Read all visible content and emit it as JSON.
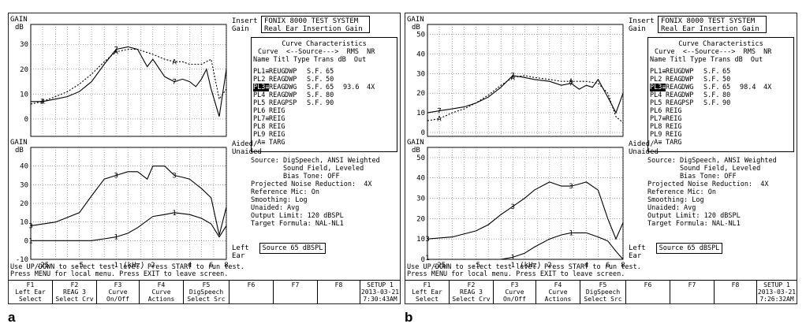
{
  "panels": [
    {
      "caption": "a",
      "header": {
        "title": "FONIX 8000 TEST SYSTEM",
        "subtitle": "Real Ear Insertion Gain"
      },
      "top_graph": {
        "y_label_top": "GAIN",
        "y_unit": "dB",
        "mode_label_1": "Insert",
        "mode_label_2": "Gain",
        "y_ticks": [
          "30",
          "20",
          "10",
          "0"
        ],
        "y_range": [
          -7,
          38
        ]
      },
      "bottom_graph": {
        "y_label_top": "GAIN",
        "y_unit": "dB",
        "mode_label_1": "Aided/",
        "mode_label_2": "Unaided",
        "ear_label_1": "Left",
        "ear_label_2": "Ear",
        "y_ticks": [
          "40",
          "30",
          "20",
          "10",
          "0",
          "-10"
        ],
        "y_range": [
          -10,
          50
        ]
      },
      "x_ticks": [
        ".25",
        ".5",
        "1",
        "(kHz)",
        "2",
        "4",
        "6",
        "8"
      ],
      "curve_characteristics": {
        "title": "Curve Characteristics",
        "header1": "Curve  <--Source--->  RMS  NR",
        "header2": "Name Titl Type Trans dB  Out",
        "rows": [
          {
            "name": "PL1≡",
            "titl": "REUG",
            "type": "DWP",
            "trans": "S.F.",
            "db": "65",
            "rms": "",
            "nr": "",
            "selected": false
          },
          {
            "name": "PL2",
            "titl": "REAG",
            "type": "DWP",
            "trans": "S.F.",
            "db": "50",
            "rms": "",
            "nr": "",
            "selected": false
          },
          {
            "name": "PL3≡",
            "titl": "REAG",
            "type": "DWG",
            "trans": "S.F.",
            "db": "65",
            "rms": "93.6",
            "nr": "4X",
            "selected": true
          },
          {
            "name": "PL4",
            "titl": "REAG",
            "type": "DWP",
            "trans": "S.F.",
            "db": "80",
            "rms": "",
            "nr": "",
            "selected": false
          },
          {
            "name": "PL5",
            "titl": "REAG",
            "type": "PSP",
            "trans": "S.F.",
            "db": "90",
            "rms": "",
            "nr": "",
            "selected": false
          },
          {
            "name": "PL6",
            "titl": "REIG",
            "type": "",
            "trans": "",
            "db": "",
            "rms": "",
            "nr": "",
            "selected": false
          },
          {
            "name": "PL7≡",
            "titl": "REIG",
            "type": "",
            "trans": "",
            "db": "",
            "rms": "",
            "nr": "",
            "selected": false
          },
          {
            "name": "PL8",
            "titl": "REIG",
            "type": "",
            "trans": "",
            "db": "",
            "rms": "",
            "nr": "",
            "selected": false
          },
          {
            "name": "PL9",
            "titl": "REIG",
            "type": "",
            "trans": "",
            "db": "",
            "rms": "",
            "nr": "",
            "selected": false
          },
          {
            "name": " A≡",
            "titl": "TARG",
            "type": "",
            "trans": "",
            "db": "",
            "rms": "",
            "nr": "",
            "selected": false
          }
        ]
      },
      "info": [
        "Source: DigSpeech, ANSI Weighted",
        "        Sound Field, Leveled",
        "        Bias Tone: OFF",
        "Projected Noise Reduction:  4X",
        "Reference Mic: On",
        "Smoothing: Log",
        "Unaided: Avg",
        "Output Limit: 120 dBSPL",
        "Target Formula: NAL-NL1"
      ],
      "source_box": "Source  65 dBSPL",
      "instructions": [
        "Use UP/DOWN to select test level. Press START to run test.",
        "Press MENU for local menu. Press EXIT to leave screen."
      ],
      "fkeys": [
        {
          "top": "F1",
          "mid": "Left Ear",
          "bot": "Select"
        },
        {
          "top": "F2",
          "mid": "REAG 3",
          "bot": "Select Crv"
        },
        {
          "top": "F3",
          "mid": "Curve",
          "bot": "On/Off"
        },
        {
          "top": "F4",
          "mid": "Curve",
          "bot": "Actions"
        },
        {
          "top": "F5",
          "mid": "DigSpeech",
          "bot": "Select Src"
        },
        {
          "top": "F6",
          "mid": "",
          "bot": ""
        },
        {
          "top": "F7",
          "mid": "",
          "bot": ""
        },
        {
          "top": "F8",
          "mid": "",
          "bot": ""
        },
        {
          "top": "SETUP 1",
          "mid": "2013-03-21",
          "bot": "7:30:43AM"
        }
      ],
      "top_curves": {
        "insertion_gain": {
          "x": [
            0.2,
            0.25,
            0.32,
            0.4,
            0.5,
            0.63,
            0.8,
            1.0,
            1.25,
            1.5,
            1.8,
            2.0,
            2.5,
            3.0,
            3.5,
            4.0,
            4.5,
            5.0,
            5.5,
            6.0,
            7.0,
            8.0
          ],
          "y": [
            7,
            7,
            8,
            9,
            11,
            15,
            22,
            28,
            29,
            28,
            21,
            24,
            17,
            15,
            16,
            15,
            13,
            16,
            20,
            12,
            1,
            20
          ],
          "marker": "7"
        },
        "target": {
          "x": [
            0.2,
            0.25,
            0.32,
            0.4,
            0.5,
            0.63,
            0.8,
            1.0,
            1.25,
            1.5,
            2.0,
            2.5,
            3.0,
            3.5,
            4.0,
            5.0,
            6.0,
            7.0,
            8.0
          ],
          "y": [
            6,
            7,
            9,
            11,
            14,
            18,
            23,
            27,
            28,
            28,
            26,
            24,
            23,
            23,
            22,
            22,
            24,
            8,
            12
          ],
          "marker": "A"
        }
      },
      "bottom_curves": {
        "aided": {
          "x": [
            0.2,
            0.32,
            0.5,
            0.63,
            0.8,
            1.0,
            1.25,
            1.5,
            1.8,
            2.0,
            2.5,
            3.0,
            3.5,
            4.0,
            5.0,
            6.0,
            7.0,
            8.0
          ],
          "y": [
            8,
            10,
            15,
            24,
            33,
            35,
            37,
            37,
            33,
            40,
            40,
            35,
            34,
            33,
            28,
            23,
            3,
            18
          ],
          "marker": "3"
        },
        "unaided": {
          "x": [
            0.2,
            0.32,
            0.5,
            0.63,
            0.8,
            1.0,
            1.25,
            1.5,
            2.0,
            2.5,
            3.0,
            4.0,
            5.0,
            6.0,
            7.0,
            8.0
          ],
          "y": [
            0,
            0,
            0,
            0,
            1,
            2,
            4,
            7,
            13,
            14,
            15,
            14,
            12,
            9,
            2,
            8
          ],
          "marker": "1"
        }
      }
    },
    {
      "caption": "b",
      "header": {
        "title": "FONIX 8000 TEST SYSTEM",
        "subtitle": "Real Ear Insertion Gain"
      },
      "top_graph": {
        "y_label_top": "GAIN",
        "y_unit": "dB",
        "mode_label_1": "Insert",
        "mode_label_2": "Gain",
        "y_ticks": [
          "50",
          "40",
          "30",
          "20",
          "10",
          "0"
        ],
        "y_range": [
          -2,
          55
        ]
      },
      "bottom_graph": {
        "y_label_top": "GAIN",
        "y_unit": "dB",
        "mode_label_1": "Aided/",
        "mode_label_2": "Unaided",
        "ear_label_1": "Left",
        "ear_label_2": "Ear",
        "y_ticks": [
          "50",
          "40",
          "30",
          "20",
          "10",
          "0"
        ],
        "y_range": [
          0,
          55
        ]
      },
      "x_ticks": [
        ".25",
        ".5",
        "1",
        "(kHz)",
        "2",
        "4",
        "6",
        "8"
      ],
      "curve_characteristics": {
        "title": "Curve Characteristics",
        "header1": "Curve  <--Source--->  RMS  NR",
        "header2": "Name Titl Type Trans dB  Out",
        "rows": [
          {
            "name": "PL1≡",
            "titl": "REUG",
            "type": "DWP",
            "trans": "S.F.",
            "db": "65",
            "rms": "",
            "nr": "",
            "selected": false
          },
          {
            "name": "PL2",
            "titl": "REAG",
            "type": "DWP",
            "trans": "S.F.",
            "db": "50",
            "rms": "",
            "nr": "",
            "selected": false
          },
          {
            "name": "PL3≡",
            "titl": "REAG",
            "type": "DWG",
            "trans": "S.F.",
            "db": "65",
            "rms": "98.4",
            "nr": "4X",
            "selected": true
          },
          {
            "name": "PL4",
            "titl": "REAG",
            "type": "DWP",
            "trans": "S.F.",
            "db": "80",
            "rms": "",
            "nr": "",
            "selected": false
          },
          {
            "name": "PL5",
            "titl": "REAG",
            "type": "PSP",
            "trans": "S.F.",
            "db": "90",
            "rms": "",
            "nr": "",
            "selected": false
          },
          {
            "name": "PL6",
            "titl": "REIG",
            "type": "",
            "trans": "",
            "db": "",
            "rms": "",
            "nr": "",
            "selected": false
          },
          {
            "name": "PL7≡",
            "titl": "REIG",
            "type": "",
            "trans": "",
            "db": "",
            "rms": "",
            "nr": "",
            "selected": false
          },
          {
            "name": "PL8",
            "titl": "REIG",
            "type": "",
            "trans": "",
            "db": "",
            "rms": "",
            "nr": "",
            "selected": false
          },
          {
            "name": "PL9",
            "titl": "REIG",
            "type": "",
            "trans": "",
            "db": "",
            "rms": "",
            "nr": "",
            "selected": false
          },
          {
            "name": " A≡",
            "titl": "TARG",
            "type": "",
            "trans": "",
            "db": "",
            "rms": "",
            "nr": "",
            "selected": false
          }
        ]
      },
      "info": [
        "Source: DigSpeech, ANSI Weighted",
        "        Sound Field, Leveled",
        "        Bias Tone: OFF",
        "Projected Noise Reduction:  4X",
        "Reference Mic: On",
        "Smoothing: Log",
        "Unaided: Avg",
        "Output Limit: 120 dBSPL",
        "Target Formula: NAL-NL1"
      ],
      "source_box": "Source  65 dBSPL",
      "instructions": [
        "Use UP/DOWN to select test level. Press START to run test.",
        "Press MENU for local menu. Press EXIT to leave screen."
      ],
      "fkeys": [
        {
          "top": "F1",
          "mid": "Left Ear",
          "bot": "Select"
        },
        {
          "top": "F2",
          "mid": "REAG 3",
          "bot": "Select Crv"
        },
        {
          "top": "F3",
          "mid": "Curve",
          "bot": "On/Off"
        },
        {
          "top": "F4",
          "mid": "Curve",
          "bot": "Actions"
        },
        {
          "top": "F5",
          "mid": "DigSpeech",
          "bot": "Select Src"
        },
        {
          "top": "F6",
          "mid": "",
          "bot": ""
        },
        {
          "top": "F7",
          "mid": "",
          "bot": ""
        },
        {
          "top": "F8",
          "mid": "",
          "bot": ""
        },
        {
          "top": "SETUP 1",
          "mid": "2013-03-21",
          "bot": "7:26:32AM"
        }
      ],
      "top_curves": {
        "insertion_gain": {
          "x": [
            0.2,
            0.25,
            0.32,
            0.4,
            0.5,
            0.63,
            0.8,
            1.0,
            1.25,
            1.5,
            2.0,
            2.5,
            3.0,
            3.5,
            4.0,
            4.5,
            5.0,
            6.0,
            7.0,
            8.0
          ],
          "y": [
            10,
            11,
            12,
            13,
            15,
            18,
            23,
            29,
            28,
            27,
            26,
            24,
            25,
            22,
            24,
            23,
            27,
            18,
            10,
            20
          ],
          "marker": "7"
        },
        "target": {
          "x": [
            0.2,
            0.25,
            0.32,
            0.4,
            0.5,
            0.63,
            0.8,
            1.0,
            1.25,
            1.5,
            2.0,
            2.5,
            3.0,
            4.0,
            5.0,
            6.0,
            7.0,
            8.0
          ],
          "y": [
            6,
            7,
            10,
            12,
            15,
            19,
            24,
            28,
            29,
            28,
            27,
            26,
            26,
            26,
            25,
            20,
            8,
            5
          ],
          "marker": "A"
        }
      },
      "bottom_curves": {
        "aided": {
          "x": [
            0.2,
            0.32,
            0.5,
            0.63,
            0.8,
            1.0,
            1.25,
            1.5,
            2.0,
            2.5,
            3.0,
            3.5,
            4.0,
            5.0,
            6.0,
            7.0,
            8.0
          ],
          "y": [
            10,
            11,
            14,
            17,
            22,
            26,
            30,
            34,
            38,
            36,
            36,
            37,
            38,
            34,
            20,
            10,
            18
          ],
          "marker": "3"
        },
        "unaided": {
          "x": [
            0.2,
            0.32,
            0.5,
            0.63,
            0.8,
            1.0,
            1.25,
            1.5,
            2.0,
            2.5,
            3.0,
            4.0,
            5.0,
            6.0,
            7.0,
            8.0
          ],
          "y": [
            -1,
            -1,
            -1,
            0,
            0,
            1,
            3,
            6,
            10,
            12,
            13,
            13,
            11,
            9,
            4,
            0
          ],
          "marker": "1"
        }
      }
    }
  ]
}
